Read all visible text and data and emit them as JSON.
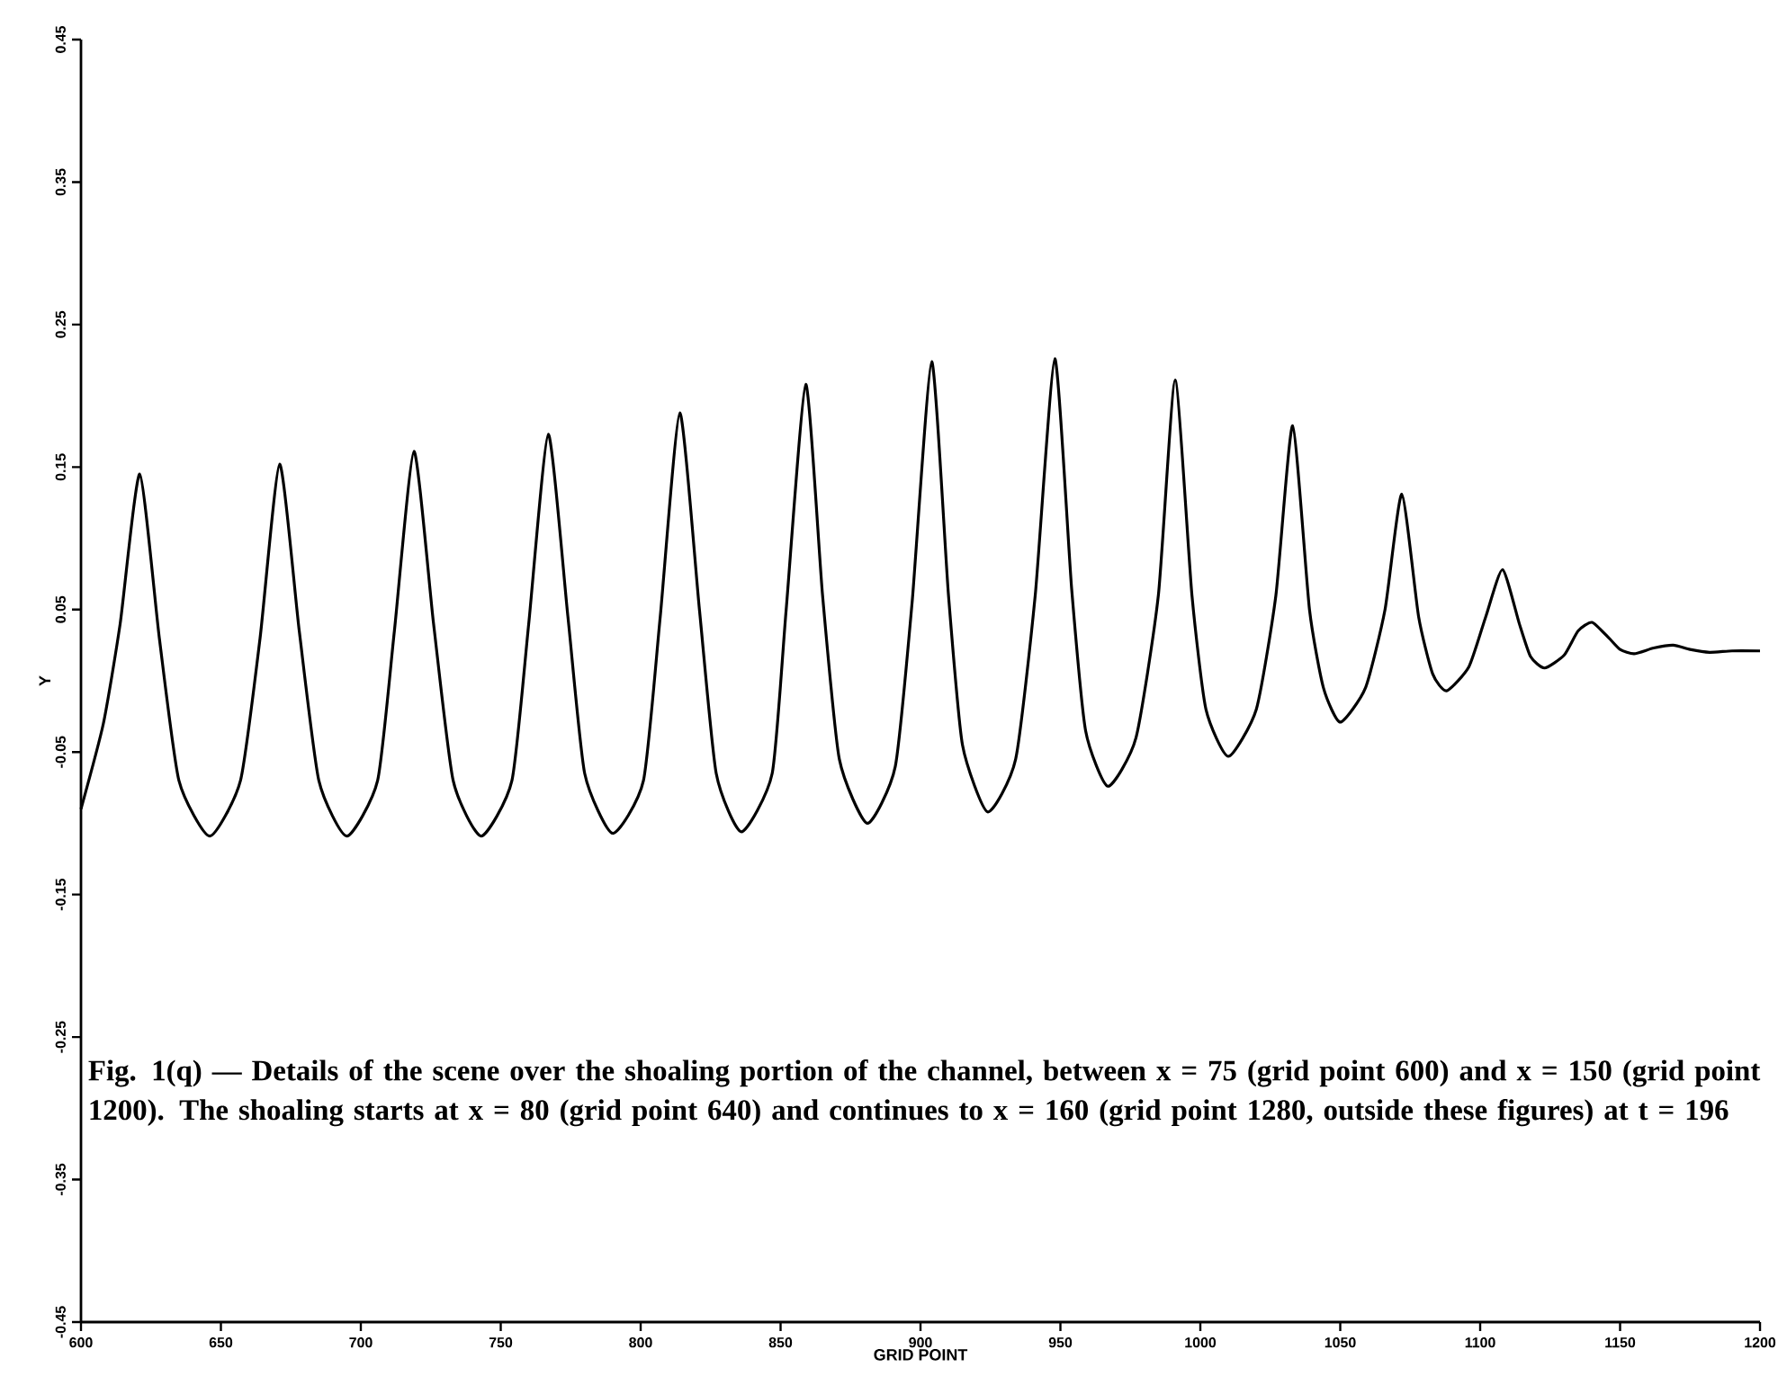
{
  "chart_data": {
    "type": "line",
    "xlabel": "GRID POINT",
    "ylabel": "Y",
    "annotations": [
      "Fig. 1(q) — Details of the scene over the shoaling portion of the channel, between x = 75 (grid point 600) and x = 150 (grid point 1200). The shoaling starts at x = 80 (grid point 640) and continues to x = 160 (grid point 1280, outside these figures) at t = 196"
    ],
    "xlim": [
      600,
      1200
    ],
    "xticks": [
      600,
      650,
      700,
      750,
      800,
      850,
      900,
      950,
      1000,
      1050,
      1100,
      1150,
      1200
    ],
    "ylim": [
      -0.45,
      0.45
    ],
    "yticks": [
      -0.45,
      -0.35,
      -0.25,
      -0.15,
      -0.05,
      0.05,
      0.15,
      0.25,
      0.35,
      0.45
    ],
    "line_style": "solid",
    "series": [
      {
        "color": "#000000",
        "x": [
          600,
          608,
          614,
          621,
          628,
          635,
          646,
          657,
          664,
          671,
          678,
          685,
          695,
          706,
          712,
          719,
          726,
          733,
          743,
          754,
          760,
          767,
          774,
          780,
          790,
          801,
          807,
          814,
          821,
          827,
          836,
          847,
          852,
          859,
          865,
          871,
          881,
          891,
          897,
          904,
          910,
          915,
          924,
          934,
          941,
          948,
          954,
          959,
          967,
          977,
          985,
          991,
          997,
          1002,
          1010,
          1020,
          1027,
          1033,
          1039,
          1044,
          1050,
          1059,
          1066,
          1072,
          1078,
          1083,
          1088,
          1096,
          1102,
          1108,
          1114,
          1118,
          1123,
          1130,
          1135,
          1140,
          1146,
          1150,
          1155,
          1162,
          1169,
          1175,
          1182,
          1190,
          1200
        ],
        "values": [
          -0.09,
          -0.03,
          0.04,
          0.145,
          0.03,
          -0.07,
          -0.109,
          -0.07,
          0.03,
          0.152,
          0.035,
          -0.07,
          -0.109,
          -0.07,
          0.035,
          0.161,
          0.04,
          -0.07,
          -0.109,
          -0.07,
          0.04,
          0.173,
          0.045,
          -0.065,
          -0.107,
          -0.07,
          0.045,
          0.188,
          0.05,
          -0.065,
          -0.106,
          -0.065,
          0.05,
          0.208,
          0.06,
          -0.055,
          -0.1,
          -0.06,
          0.055,
          0.224,
          0.06,
          -0.045,
          -0.092,
          -0.055,
          0.06,
          0.226,
          0.065,
          -0.035,
          -0.074,
          -0.04,
          0.06,
          0.211,
          0.06,
          -0.02,
          -0.053,
          -0.02,
          0.06,
          0.179,
          0.05,
          -0.005,
          -0.029,
          -0.005,
          0.05,
          0.131,
          0.045,
          0.005,
          -0.007,
          0.01,
          0.045,
          0.078,
          0.04,
          0.017,
          0.009,
          0.018,
          0.035,
          0.041,
          0.03,
          0.022,
          0.019,
          0.023,
          0.025,
          0.022,
          0.02,
          0.021,
          0.021
        ]
      }
    ]
  }
}
